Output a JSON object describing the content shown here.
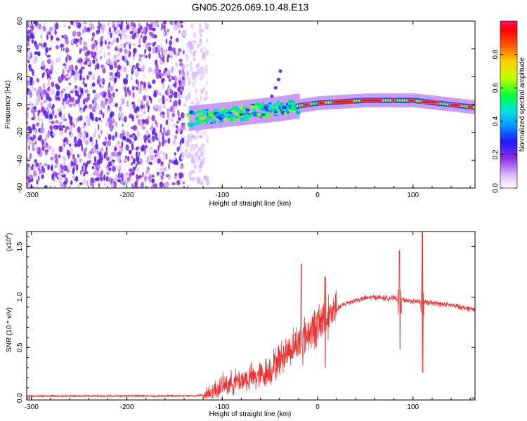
{
  "title": "GN05.2026.069.10.48.E13",
  "chart_data": [
    {
      "type": "heatmap",
      "name": "spectrogram",
      "xlabel": "Height of straight line (km)",
      "ylabel": "Frequency (Hz)",
      "xlim": [
        -305,
        165
      ],
      "ylim": [
        -60,
        60
      ],
      "xticks": [
        -300,
        -200,
        -100,
        0,
        100
      ],
      "yticks": [
        -60,
        -40,
        -20,
        0,
        20,
        40,
        60
      ],
      "colorbar": {
        "label": "Normalized spectral amplitude",
        "range": [
          0.0,
          1.0
        ],
        "ticks": [
          0.0,
          0.2,
          0.4,
          0.6,
          0.8
        ]
      },
      "regions": [
        {
          "desc": "noise",
          "x_range": [
            -305,
            -130
          ],
          "freq_range": [
            -60,
            60
          ],
          "amplitude": [
            0.0,
            0.25
          ]
        },
        {
          "desc": "signal_band",
          "x_range": [
            -135,
            165
          ],
          "center_freq_at": [
            [
              -135,
              -10
            ],
            [
              -40,
              -3
            ],
            [
              0,
              1
            ],
            [
              50,
              3
            ],
            [
              100,
              3
            ],
            [
              165,
              -2
            ]
          ],
          "amplitude_peak": 1.0
        }
      ]
    },
    {
      "type": "line",
      "name": "snr",
      "xlabel": "Height of straight line (km)",
      "ylabel": "SNR (10 * v/v)",
      "scale_label": "(x10",
      "scale_exp": "4",
      "scale_close": ")",
      "xlim": [
        -305,
        165
      ],
      "ylim": [
        -0.02,
        1.65
      ],
      "xticks": [
        -300,
        -200,
        -100,
        0,
        100
      ],
      "yticks": [
        0.0,
        0.5,
        1.0,
        1.5
      ],
      "ytick_labels": [
        "0.0",
        "0.5",
        "1.0",
        "1.5"
      ],
      "color": "#ee3333",
      "x": [
        -305,
        -250,
        -200,
        -150,
        -130,
        -120,
        -110,
        -100,
        -90,
        -80,
        -70,
        -60,
        -50,
        -40,
        -30,
        -20,
        -15,
        -10,
        -5,
        0,
        10,
        20,
        30,
        40,
        50,
        60,
        70,
        80,
        85,
        90,
        100,
        110,
        120,
        130,
        140,
        150,
        165
      ],
      "y": [
        0.02,
        0.02,
        0.02,
        0.02,
        0.02,
        0.03,
        0.06,
        0.12,
        0.15,
        0.18,
        0.2,
        0.22,
        0.28,
        0.38,
        0.48,
        0.55,
        0.6,
        0.64,
        0.68,
        0.72,
        0.8,
        0.88,
        0.94,
        0.97,
        0.99,
        1.0,
        0.99,
        0.99,
        0.98,
        0.97,
        0.96,
        0.95,
        0.94,
        0.93,
        0.92,
        0.9,
        0.88
      ],
      "spikes": [
        {
          "x": -17,
          "peak": 1.33,
          "dip": 0.5
        },
        {
          "x": 8,
          "peak": 1.2,
          "dip": 0.3
        },
        {
          "x": 86,
          "peak": 1.46,
          "dip": 0.48
        },
        {
          "x": 110,
          "peak": 1.65,
          "dip": 0.25
        }
      ]
    }
  ]
}
